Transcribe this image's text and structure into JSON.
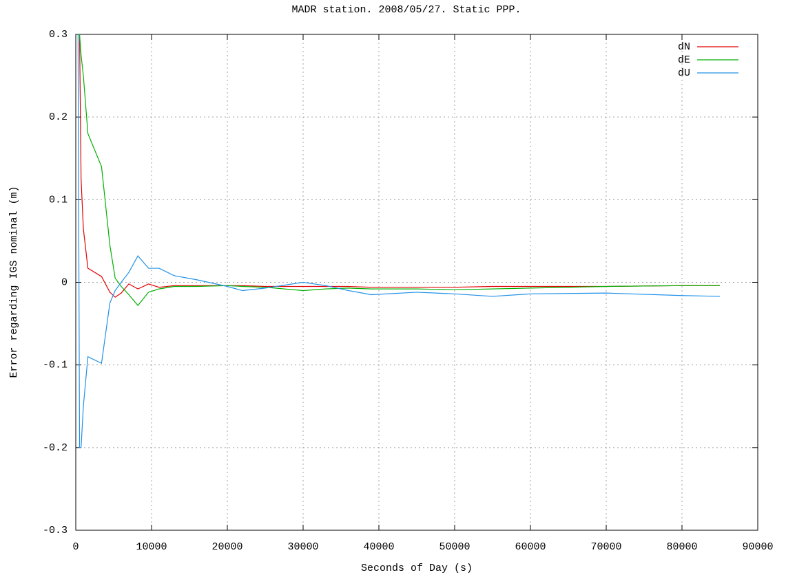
{
  "chart_data": {
    "type": "line",
    "title": "MADR station. 2008/05/27. Static PPP.",
    "x_label": "Seconds of Day (s)",
    "y_label": "Error regarding IGS nominal (m)",
    "x": [
      300,
      500,
      700,
      1000,
      1600,
      3400,
      4500,
      5200,
      6000,
      7000,
      8200,
      9600,
      11000,
      13000,
      16000,
      20000,
      22000,
      25000,
      30000,
      33000,
      36000,
      39000,
      45000,
      50000,
      55000,
      60000,
      70000,
      80000,
      85000
    ],
    "series": [
      {
        "name": "dN",
        "color": "#e00000",
        "values": [
          null,
          0.3,
          0.125,
          0.065,
          0.017,
          0.007,
          -0.012,
          -0.018,
          -0.013,
          -0.002,
          -0.008,
          -0.002,
          -0.006,
          -0.004,
          -0.004,
          -0.004,
          -0.004,
          -0.005,
          -0.005,
          -0.005,
          -0.005,
          -0.006,
          -0.006,
          -0.006,
          -0.005,
          -0.005,
          -0.005,
          -0.004,
          -0.004
        ]
      },
      {
        "name": "dE",
        "color": "#00b000",
        "values": [
          null,
          0.3,
          0.275,
          0.25,
          0.18,
          0.14,
          0.045,
          0.005,
          -0.005,
          -0.015,
          -0.028,
          -0.012,
          -0.008,
          -0.005,
          -0.005,
          -0.004,
          -0.005,
          -0.006,
          -0.01,
          -0.008,
          -0.007,
          -0.008,
          -0.008,
          -0.009,
          -0.008,
          -0.007,
          -0.005,
          -0.004,
          -0.004
        ]
      },
      {
        "name": "dU",
        "color": "#2090e8",
        "values": [
          0.3,
          -0.2,
          -0.2,
          -0.15,
          -0.09,
          -0.098,
          -0.025,
          -0.01,
          0,
          0.012,
          0.032,
          0.017,
          0.017,
          0.008,
          0.003,
          -0.005,
          -0.01,
          -0.007,
          0,
          -0.004,
          -0.01,
          -0.015,
          -0.012,
          -0.014,
          -0.017,
          -0.014,
          -0.013,
          -0.016,
          -0.017
        ]
      }
    ],
    "xlim": [
      0,
      90000
    ],
    "xticks": [
      0,
      10000,
      20000,
      30000,
      40000,
      50000,
      60000,
      70000,
      80000,
      90000
    ],
    "ylim": [
      -0.3,
      0.3
    ],
    "yticks": [
      -0.3,
      -0.2,
      -0.1,
      0,
      0.1,
      0.2,
      0.3
    ],
    "grid": true,
    "legend": "top-right"
  }
}
